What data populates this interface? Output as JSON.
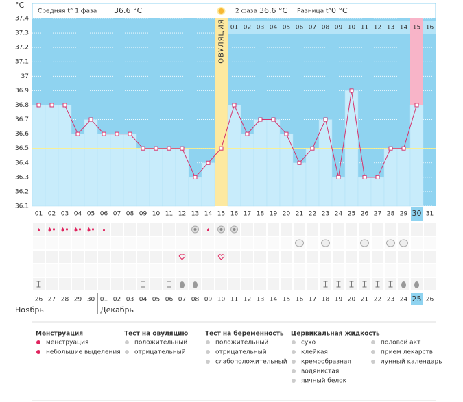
{
  "chart_data": {
    "type": "line",
    "unit": "°C",
    "phase1_label": "Средняя t° 1 фаза",
    "phase1_value": "36.6 °C",
    "phase2_label": "2 фаза",
    "phase2_value": "36.6 °C",
    "diff_label": "Разница t°",
    "diff_value": "0 °C",
    "ovulation_label": "ОВУЛЯЦИЯ",
    "ovulation_day": 15,
    "highlight_day": 30,
    "coverline": 36.5,
    "ylim": [
      36.1,
      37.4
    ],
    "yticks": [
      36.1,
      36.2,
      36.3,
      36.4,
      36.5,
      36.6,
      36.7,
      36.8,
      36.9,
      37,
      37.1,
      37.2,
      37.3,
      37.4
    ],
    "categories": [
      "01",
      "02",
      "03",
      "04",
      "05",
      "06",
      "07",
      "08",
      "09",
      "10",
      "11",
      "12",
      "13",
      "14",
      "15",
      "16",
      "17",
      "18",
      "19",
      "20",
      "21",
      "22",
      "23",
      "24",
      "25",
      "26",
      "27",
      "28",
      "29",
      "30",
      "31"
    ],
    "phase2_days": [
      "01",
      "02",
      "03",
      "04",
      "05",
      "06",
      "07",
      "08",
      "09",
      "10",
      "11",
      "12",
      "13",
      "14",
      "15",
      "16"
    ],
    "series": [
      {
        "name": "t°",
        "color": "#d6336c",
        "values": [
          36.8,
          36.8,
          36.8,
          36.6,
          36.7,
          36.6,
          36.6,
          36.6,
          36.5,
          36.5,
          36.5,
          36.5,
          36.3,
          36.4,
          36.5,
          36.8,
          36.6,
          36.7,
          36.7,
          36.6,
          36.4,
          36.5,
          36.7,
          36.3,
          36.9,
          36.3,
          36.3,
          36.5,
          36.5,
          36.8,
          null
        ]
      }
    ],
    "dates": [
      "26",
      "27",
      "28",
      "29",
      "30",
      "01",
      "02",
      "03",
      "04",
      "05",
      "06",
      "07",
      "08",
      "09",
      "10",
      "11",
      "12",
      "13",
      "14",
      "15",
      "16",
      "17",
      "18",
      "19",
      "20",
      "21",
      "22",
      "23",
      "24",
      "25",
      "26"
    ],
    "date_colors": [
      "#333",
      "#333",
      "#333",
      "#333",
      "#d6245e",
      "#d6245e",
      "#333",
      "#333",
      "#333",
      "#333",
      "#333",
      "#d6245e",
      "#d6245e",
      "#333",
      "#333",
      "#333",
      "#333",
      "#333",
      "#d6245e",
      "#d6245e",
      "#333",
      "#333",
      "#333",
      "#333",
      "#333",
      "#d6245e",
      "#d6245e",
      "#333",
      "#333",
      "#333",
      "#333"
    ],
    "months": [
      "Ноябрь",
      "Декабрь"
    ]
  },
  "legend": [
    {
      "title": "Менструация",
      "items": [
        "менструация",
        "небольшие выделения"
      ]
    },
    {
      "title": "Тест на овуляцию",
      "items": [
        "положительный",
        "отрицательный"
      ]
    },
    {
      "title": "Тест на беременность",
      "items": [
        "положительный",
        "отрицательный",
        "слабоположительный"
      ]
    },
    {
      "title": "Цервикальная жидкость",
      "items": [
        "сухо",
        "клейкая",
        "кремообразная",
        "водянистая",
        "яичный белок"
      ]
    },
    {
      "title": "",
      "items": [
        "половой акт",
        "прием лекарств",
        "лунный календарь"
      ]
    }
  ]
}
